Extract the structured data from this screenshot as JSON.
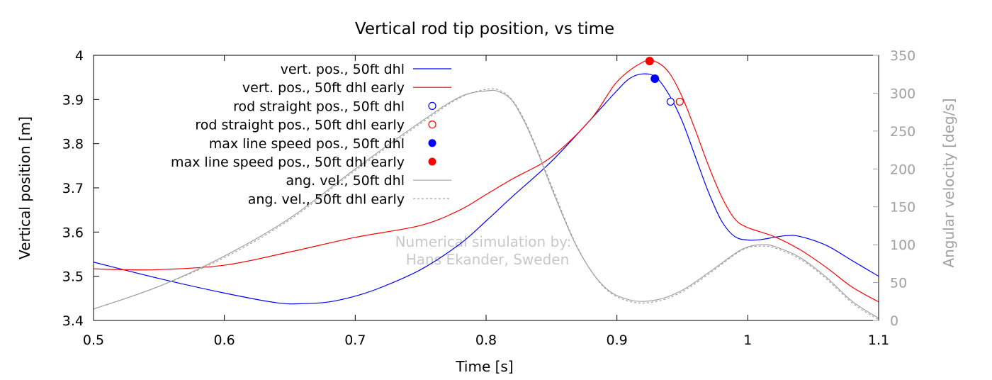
{
  "chart_data": {
    "type": "line",
    "title": "Vertical rod tip position, vs time",
    "xlabel": "Time [s]",
    "ylabel": "Vertical position [m]",
    "y2label": "Angular velocity [deg/s]",
    "xlim": [
      0.5,
      1.1
    ],
    "ylim": [
      3.4,
      4.0
    ],
    "y2lim": [
      0,
      350
    ],
    "x_ticks": [
      "0.5",
      "0.6",
      "0.7",
      "0.8",
      "0.9",
      "1",
      "1.1"
    ],
    "y_ticks": [
      "3.4",
      "3.5",
      "3.6",
      "3.7",
      "3.8",
      "3.9",
      "4"
    ],
    "y2_ticks": [
      "0",
      "50",
      "100",
      "150",
      "200",
      "250",
      "300",
      "350"
    ],
    "grid": false,
    "legend_position": "top-left",
    "annotation": [
      "Numerical simulation by:",
      "Hans Ekander, Sweden"
    ],
    "colors": {
      "blue": "#0000ff",
      "red": "#ff0000",
      "gray": "#a0a0a0"
    },
    "series": [
      {
        "name": "vert. pos., 50ft dhl",
        "axis": "left",
        "style": "line",
        "color": "#0000ff",
        "x": [
          0.5,
          0.55,
          0.6,
          0.64,
          0.66,
          0.68,
          0.7,
          0.72,
          0.75,
          0.78,
          0.8,
          0.82,
          0.85,
          0.88,
          0.9,
          0.91,
          0.92,
          0.93,
          0.94,
          0.95,
          0.96,
          0.97,
          0.98,
          0.99,
          1.0,
          1.01,
          1.02,
          1.03,
          1.04,
          1.06,
          1.08,
          1.1
        ],
        "y": [
          3.532,
          3.495,
          3.462,
          3.44,
          3.438,
          3.442,
          3.455,
          3.475,
          3.515,
          3.573,
          3.625,
          3.68,
          3.76,
          3.855,
          3.92,
          3.948,
          3.958,
          3.95,
          3.91,
          3.85,
          3.77,
          3.69,
          3.625,
          3.59,
          3.582,
          3.583,
          3.588,
          3.592,
          3.59,
          3.57,
          3.535,
          3.5
        ]
      },
      {
        "name": "vert. pos., 50ft dhl early",
        "axis": "left",
        "style": "line",
        "color": "#ff0000",
        "x": [
          0.5,
          0.52,
          0.55,
          0.6,
          0.65,
          0.7,
          0.75,
          0.78,
          0.8,
          0.82,
          0.85,
          0.88,
          0.9,
          0.92,
          0.93,
          0.94,
          0.95,
          0.96,
          0.97,
          0.98,
          0.99,
          1.0,
          1.02,
          1.04,
          1.06,
          1.08,
          1.1
        ],
        "y": [
          3.517,
          3.515,
          3.515,
          3.525,
          3.555,
          3.588,
          3.615,
          3.65,
          3.685,
          3.72,
          3.77,
          3.855,
          3.94,
          3.985,
          3.985,
          3.96,
          3.905,
          3.83,
          3.75,
          3.68,
          3.63,
          3.61,
          3.59,
          3.56,
          3.52,
          3.475,
          3.442
        ]
      },
      {
        "name": "rod straight pos., 50ft dhl",
        "axis": "left",
        "style": "open-circle",
        "color": "#0000ff",
        "x": [
          0.941
        ],
        "y": [
          3.895
        ]
      },
      {
        "name": "rod straight pos., 50ft dhl early",
        "axis": "left",
        "style": "open-circle",
        "color": "#ff0000",
        "x": [
          0.948
        ],
        "y": [
          3.895
        ]
      },
      {
        "name": "max line speed pos., 50ft dhl",
        "axis": "left",
        "style": "filled-circle",
        "color": "#0000ff",
        "x": [
          0.929
        ],
        "y": [
          3.947
        ]
      },
      {
        "name": "max line speed pos., 50ft dhl early",
        "axis": "left",
        "style": "filled-circle",
        "color": "#ff0000",
        "x": [
          0.925
        ],
        "y": [
          3.987
        ]
      },
      {
        "name": "ang. vel., 50ft dhl",
        "axis": "right",
        "style": "line",
        "color": "#a0a0a0",
        "x": [
          0.5,
          0.55,
          0.6,
          0.65,
          0.7,
          0.75,
          0.78,
          0.8,
          0.81,
          0.82,
          0.83,
          0.84,
          0.85,
          0.87,
          0.89,
          0.91,
          0.93,
          0.95,
          0.97,
          0.99,
          1.0,
          1.01,
          1.02,
          1.04,
          1.06,
          1.08,
          1.1
        ],
        "y": [
          15,
          45,
          85,
          135,
          200,
          262,
          295,
          303,
          302,
          290,
          260,
          220,
          175,
          95,
          45,
          27,
          27,
          40,
          63,
          88,
          97,
          100,
          98,
          83,
          57,
          25,
          3
        ]
      },
      {
        "name": "ang. vel., 50ft dhl early",
        "axis": "right",
        "style": "dashed",
        "color": "#a0a0a0",
        "x": [
          0.5,
          0.55,
          0.6,
          0.65,
          0.7,
          0.75,
          0.78,
          0.8,
          0.81,
          0.82,
          0.83,
          0.84,
          0.85,
          0.87,
          0.89,
          0.91,
          0.93,
          0.95,
          0.97,
          0.99,
          1.0,
          1.01,
          1.02,
          1.04,
          1.06,
          1.08,
          1.1
        ],
        "y": [
          15,
          45,
          83,
          133,
          198,
          260,
          294,
          305,
          304,
          291,
          262,
          222,
          178,
          96,
          44,
          25,
          25,
          38,
          61,
          87,
          96,
          98,
          96,
          81,
          55,
          23,
          1
        ]
      }
    ]
  }
}
